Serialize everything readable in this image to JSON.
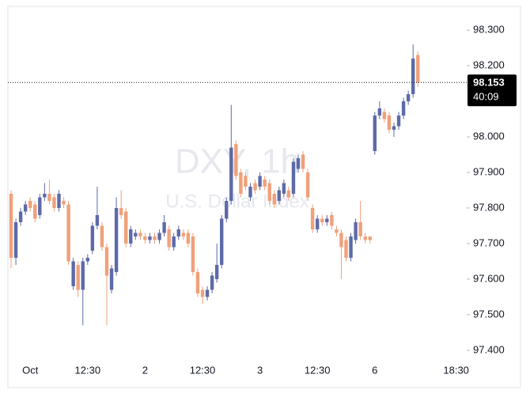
{
  "chart_data": {
    "type": "candlestick",
    "watermark": "DXY, 1h",
    "watermark_subtitle": "U.S. Dollar Index",
    "up_color": "#5d6aa8",
    "down_color": "#f0a07a",
    "countdown": "40:09",
    "categories": [
      null,
      null,
      null,
      null,
      "Oct",
      null,
      null,
      null,
      null,
      null,
      null,
      null,
      null,
      null,
      null,
      null,
      "12:30",
      null,
      null,
      null,
      null,
      null,
      null,
      null,
      null,
      null,
      null,
      null,
      "2",
      null,
      null,
      null,
      null,
      null,
      null,
      null,
      null,
      null,
      null,
      null,
      "12:30",
      null,
      null,
      null,
      null,
      null,
      null,
      null,
      null,
      null,
      null,
      null,
      "3",
      null,
      null,
      null,
      null,
      null,
      null,
      null,
      null,
      null,
      null,
      null,
      "12:30",
      null,
      null,
      null,
      null,
      null,
      null,
      null,
      null,
      null,
      null,
      null,
      "6",
      null,
      null,
      null,
      null,
      null,
      null,
      null,
      null,
      null,
      null,
      null,
      null,
      null,
      null,
      null,
      null,
      "18:30"
    ],
    "open": [
      97.84,
      97.66,
      97.76,
      97.79,
      97.82,
      97.81,
      97.78,
      97.83,
      97.84,
      97.83,
      97.8,
      97.82,
      97.81,
      97.58,
      97.64,
      97.57,
      97.65,
      97.68,
      97.75,
      97.75,
      97.69,
      97.57,
      97.62,
      97.8,
      97.79,
      97.7,
      97.72,
      97.73,
      97.72,
      97.71,
      97.72,
      97.71,
      97.73,
      97.74,
      97.69,
      97.72,
      97.73,
      97.73,
      97.72,
      97.62,
      97.57,
      97.55,
      97.57,
      97.6,
      97.64,
      97.77,
      97.82,
      97.98,
      97.9,
      97.89,
      97.83,
      97.87,
      97.86,
      97.88,
      97.87,
      97.84,
      97.82,
      97.84,
      97.85,
      97.84,
      97.91,
      97.95,
      97.9,
      97.8,
      97.74,
      97.77,
      97.76,
      97.78,
      97.74,
      97.73,
      97.71,
      97.66,
      97.71,
      97.76,
      97.72,
      97.72,
      97.96,
      98.06,
      98.07,
      98.06,
      98.02,
      98.03,
      98.06,
      98.1,
      98.12,
      98.23,
      null,
      null,
      null,
      null,
      null,
      null,
      null,
      null
    ],
    "high": [
      97.85,
      97.77,
      97.8,
      97.82,
      97.83,
      97.82,
      97.84,
      97.87,
      97.88,
      97.84,
      97.85,
      97.83,
      97.82,
      97.66,
      97.65,
      97.66,
      97.67,
      97.76,
      97.86,
      97.76,
      97.7,
      97.64,
      97.83,
      97.85,
      97.8,
      97.75,
      97.74,
      97.74,
      97.73,
      97.73,
      97.73,
      97.74,
      97.78,
      97.75,
      97.73,
      97.75,
      97.74,
      97.74,
      97.73,
      97.63,
      97.58,
      97.58,
      97.62,
      97.7,
      97.78,
      97.83,
      98.09,
      97.99,
      97.91,
      97.9,
      97.87,
      97.88,
      97.9,
      97.89,
      97.88,
      97.85,
      97.86,
      97.88,
      97.86,
      97.94,
      97.95,
      97.96,
      97.91,
      97.81,
      97.78,
      97.78,
      97.78,
      97.79,
      97.75,
      97.74,
      97.72,
      97.73,
      97.77,
      97.82,
      97.73,
      97.72,
      98.07,
      98.1,
      98.08,
      98.07,
      98.04,
      98.07,
      98.11,
      98.13,
      98.26,
      98.24,
      null,
      null,
      null,
      null,
      null,
      null,
      null,
      null
    ],
    "low": [
      97.63,
      97.64,
      97.75,
      97.78,
      97.79,
      97.76,
      97.77,
      97.82,
      97.81,
      97.79,
      97.79,
      97.8,
      97.64,
      97.57,
      97.55,
      97.47,
      97.64,
      97.67,
      97.74,
      97.68,
      97.47,
      97.56,
      97.61,
      97.77,
      97.69,
      97.69,
      97.71,
      97.71,
      97.7,
      97.7,
      97.7,
      97.7,
      97.72,
      97.68,
      97.68,
      97.71,
      97.71,
      97.69,
      97.61,
      97.55,
      97.53,
      97.54,
      97.56,
      97.59,
      97.63,
      97.76,
      97.81,
      97.88,
      97.83,
      97.85,
      97.82,
      97.84,
      97.85,
      97.85,
      97.81,
      97.8,
      97.81,
      97.83,
      97.82,
      97.83,
      97.9,
      97.9,
      97.82,
      97.73,
      97.73,
      97.75,
      97.75,
      97.74,
      97.72,
      97.6,
      97.65,
      97.65,
      97.7,
      97.71,
      97.7,
      97.7,
      97.95,
      98.05,
      98.04,
      98.01,
      98.0,
      98.02,
      98.05,
      98.09,
      98.11,
      98.14,
      null,
      null,
      null,
      null,
      null,
      null,
      null,
      null
    ],
    "close": [
      97.66,
      97.76,
      97.79,
      97.81,
      97.8,
      97.77,
      97.83,
      97.84,
      97.82,
      97.8,
      97.84,
      97.81,
      97.65,
      97.65,
      97.57,
      97.65,
      97.66,
      97.75,
      97.78,
      97.69,
      97.61,
      97.63,
      97.8,
      97.78,
      97.7,
      97.74,
      97.73,
      97.72,
      97.71,
      97.72,
      97.71,
      97.73,
      97.76,
      97.69,
      97.72,
      97.74,
      97.72,
      97.7,
      97.62,
      97.56,
      97.55,
      97.57,
      97.61,
      97.64,
      97.77,
      97.82,
      97.97,
      97.89,
      97.84,
      97.86,
      97.86,
      97.85,
      97.89,
      97.86,
      97.82,
      97.81,
      97.85,
      97.87,
      97.83,
      97.93,
      97.94,
      97.91,
      97.83,
      97.74,
      97.77,
      97.76,
      97.77,
      97.75,
      97.73,
      97.69,
      97.66,
      97.72,
      97.76,
      97.72,
      97.71,
      97.71,
      98.06,
      98.08,
      98.05,
      98.02,
      98.03,
      98.06,
      98.1,
      98.12,
      98.22,
      98.153,
      null,
      null,
      null,
      null,
      null,
      null,
      null,
      null
    ],
    "ylim": [
      97.373,
      98.367
    ],
    "yticks": [
      {
        "value": 97.4,
        "label": "97.400"
      },
      {
        "value": 97.5,
        "label": "97.500"
      },
      {
        "value": 97.6,
        "label": "97.600"
      },
      {
        "value": 97.7,
        "label": "97.700"
      },
      {
        "value": 97.8,
        "label": "97.800"
      },
      {
        "value": 97.9,
        "label": "97.900"
      },
      {
        "value": 98.0,
        "label": "98.000"
      },
      {
        "value": 98.2,
        "label": "98.200"
      },
      {
        "value": 98.3,
        "label": "98.300"
      }
    ]
  }
}
